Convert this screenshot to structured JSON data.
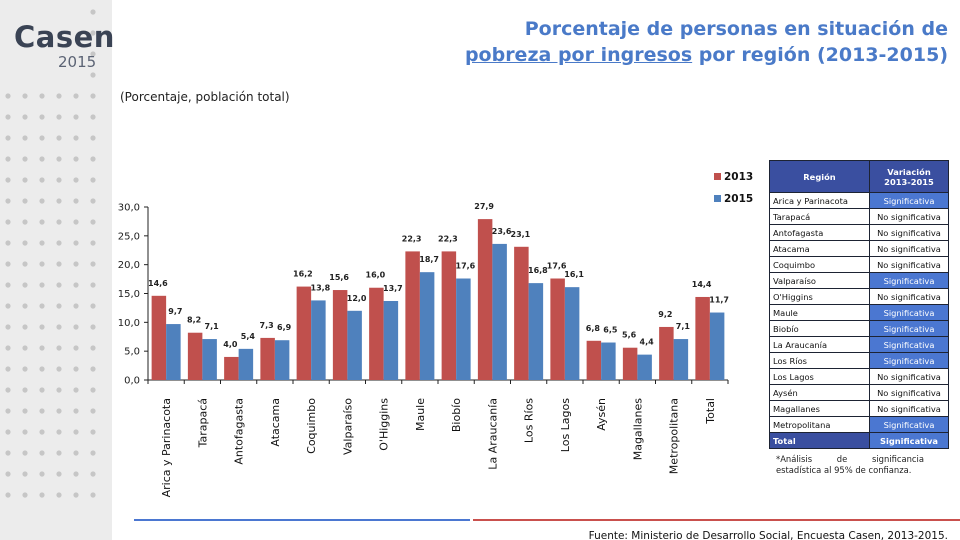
{
  "logo": {
    "name": "Casen",
    "year": "2015"
  },
  "title": {
    "prefix": "Porcentaje de personas en situación de",
    "underlined": "pobreza por ingresos",
    "suffix": "por región (2013-2015)"
  },
  "subtitle": "(Porcentaje, población total)",
  "colors": {
    "series_2013": "#c0504d",
    "series_2015": "#4f81bd",
    "title": "#4a7ac8",
    "table_header": "#3a4fa0",
    "significant": "#4b77d1"
  },
  "chart_data": {
    "type": "bar",
    "categories": [
      "Arica y Parinacota",
      "Tarapacá",
      "Antofagasta",
      "Atacama",
      "Coquimbo",
      "Valparaíso",
      "O'Higgins",
      "Maule",
      "Biobío",
      "La Araucanía",
      "Los Ríos",
      "Los Lagos",
      "Aysén",
      "Magallanes",
      "Metropolitana",
      "Total"
    ],
    "series": [
      {
        "name": "2013",
        "values": [
          14.6,
          8.2,
          4.0,
          7.3,
          16.2,
          15.6,
          16.0,
          22.3,
          22.3,
          27.9,
          23.1,
          17.6,
          6.8,
          5.6,
          9.2,
          14.4
        ],
        "labels": [
          "14,6",
          "8,2",
          "4,0",
          "7,3",
          "16,2",
          "15,6",
          "16,0",
          "22,3",
          "22,3",
          "27,9",
          "23,1",
          "17,6",
          "6,8",
          "5,6",
          "9,2",
          "14,4"
        ]
      },
      {
        "name": "2015",
        "values": [
          9.7,
          7.1,
          5.4,
          6.9,
          13.8,
          12.0,
          13.7,
          18.7,
          17.6,
          23.6,
          16.8,
          16.1,
          6.5,
          4.4,
          7.1,
          11.7
        ],
        "labels": [
          "9,7",
          "7,1",
          "5,4",
          "6,9",
          "13,8",
          "12,0",
          "13,7",
          "18,7",
          "17,6",
          "23,6",
          "16,8",
          "16,1",
          "6,5",
          "4,4",
          "7,1",
          "11,7"
        ]
      }
    ],
    "ylim": [
      0,
      30
    ],
    "yticks": [
      "0,0",
      "5,0",
      "10,0",
      "15,0",
      "20,0",
      "25,0",
      "30,0"
    ],
    "legend_position": "top-right",
    "grid": false
  },
  "table": {
    "headers": [
      "Región",
      "Variación 2013-2015"
    ],
    "rows": [
      {
        "region": "Arica y Parinacota",
        "variation": "Significativa",
        "sig": true
      },
      {
        "region": "Tarapacá",
        "variation": "No significativa",
        "sig": false
      },
      {
        "region": "Antofagasta",
        "variation": "No significativa",
        "sig": false
      },
      {
        "region": "Atacama",
        "variation": "No significativa",
        "sig": false
      },
      {
        "region": "Coquimbo",
        "variation": "No significativa",
        "sig": false
      },
      {
        "region": "Valparaíso",
        "variation": "Significativa",
        "sig": true
      },
      {
        "region": "O'Higgins",
        "variation": "No significativa",
        "sig": false
      },
      {
        "region": "Maule",
        "variation": "Significativa",
        "sig": true
      },
      {
        "region": "Biobío",
        "variation": "Significativa",
        "sig": true
      },
      {
        "region": "La Araucanía",
        "variation": "Significativa",
        "sig": true
      },
      {
        "region": "Los Ríos",
        "variation": "Significativa",
        "sig": true
      },
      {
        "region": "Los Lagos",
        "variation": "No significativa",
        "sig": false
      },
      {
        "region": "Aysén",
        "variation": "No significativa",
        "sig": false
      },
      {
        "region": "Magallanes",
        "variation": "No significativa",
        "sig": false
      },
      {
        "region": "Metropolitana",
        "variation": "Significativa",
        "sig": true
      },
      {
        "region": "Total",
        "variation": "Significativa",
        "sig": true,
        "total": true
      }
    ]
  },
  "footnote": "*Análisis de significancia estadística al 95% de confianza.",
  "source": "Fuente: Ministerio de Desarrollo Social, Encuesta Casen, 2013-2015."
}
